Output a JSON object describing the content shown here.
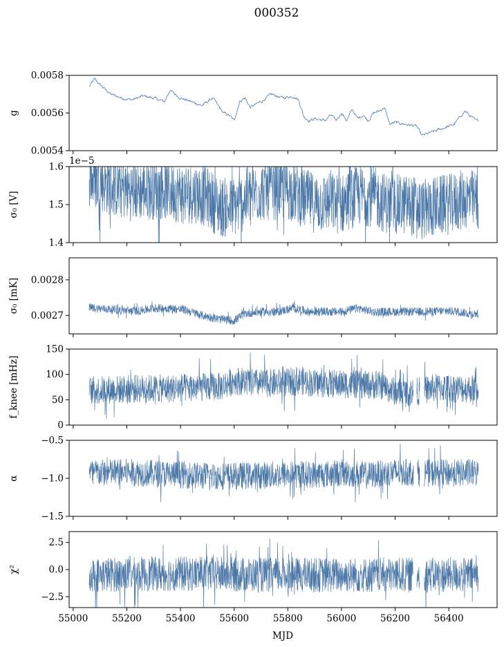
{
  "figure": {
    "title": "000352"
  },
  "colors": {
    "series": "#4c78a8",
    "axis": "#000000",
    "background": "#ffffff"
  },
  "chart_data": [
    {
      "type": "line",
      "id": "g",
      "ylabel": "g",
      "ylim": [
        0.0054,
        0.0058
      ],
      "yticks": [
        0.0054,
        0.0056,
        0.0058
      ],
      "yticklabels": [
        "0.0054",
        "0.0056",
        "0.0058"
      ],
      "offset_text": "",
      "x_range": [
        55060,
        56510
      ],
      "style": "thin",
      "series": [
        {
          "x": [
            55060,
            55080,
            55100,
            55140,
            55180,
            55220,
            55260,
            55300,
            55340,
            55360,
            55400,
            55440,
            55480,
            55520,
            55560,
            55580,
            55600,
            55620,
            55640,
            55660,
            55700,
            55740,
            55780,
            55820,
            55840,
            55860,
            55880,
            55900,
            55940,
            55960,
            55980,
            56000,
            56020,
            56040,
            56060,
            56080,
            56100,
            56120,
            56140,
            56160,
            56180,
            56200,
            56240,
            56280,
            56300,
            56340,
            56380,
            56420,
            56460,
            56500
          ],
          "y": [
            0.00574,
            0.00578,
            0.00575,
            0.0057,
            0.00568,
            0.00567,
            0.00569,
            0.00568,
            0.00566,
            0.00572,
            0.00568,
            0.00566,
            0.00564,
            0.00568,
            0.0056,
            0.00559,
            0.00556,
            0.00566,
            0.00568,
            0.00563,
            0.00566,
            0.0057,
            0.00568,
            0.00569,
            0.00567,
            0.00558,
            0.00556,
            0.00557,
            0.00556,
            0.00559,
            0.00556,
            0.0056,
            0.00556,
            0.00562,
            0.00557,
            0.00559,
            0.00556,
            0.0056,
            0.00561,
            0.00563,
            0.00554,
            0.00555,
            0.00554,
            0.00553,
            0.00548,
            0.0055,
            0.00552,
            0.00554,
            0.00561,
            0.00556
          ]
        }
      ]
    },
    {
      "type": "line",
      "id": "sigma0_v",
      "ylabel": "σ₀ [V]",
      "ylim": [
        1.4e-05,
        1.6e-05
      ],
      "yticks": [
        1.4e-05,
        1.5e-05,
        1.6e-05
      ],
      "yticklabels": [
        "1.4",
        "1.5",
        "1.6"
      ],
      "offset_text": "1e−5",
      "x_range": [
        55060,
        56510
      ],
      "style": "band",
      "series": [
        {
          "x": [
            55060,
            55100,
            55160,
            55220,
            55280,
            55340,
            55400,
            55460,
            55500,
            55540,
            55580,
            55620,
            55660,
            55700,
            55760,
            55820,
            55860,
            55900,
            55960,
            56000,
            56040,
            56080,
            56120,
            56160,
            56200,
            56240,
            56280,
            56300,
            56340,
            56400,
            56460,
            56510
          ],
          "y": [
            1.57e-05,
            1.56e-05,
            1.545e-05,
            1.535e-05,
            1.54e-05,
            1.54e-05,
            1.53e-05,
            1.53e-05,
            1.52e-05,
            1.495e-05,
            1.49e-05,
            1.5e-05,
            1.525e-05,
            1.535e-05,
            1.54e-05,
            1.535e-05,
            1.515e-05,
            1.505e-05,
            1.505e-05,
            1.5e-05,
            1.52e-05,
            1.525e-05,
            1.52e-05,
            1.505e-05,
            1.5e-05,
            1.5e-05,
            1.495e-05,
            1.485e-05,
            1.495e-05,
            1.5e-05,
            1.515e-05,
            1.51e-05
          ],
          "spread": 8e-07
        }
      ]
    },
    {
      "type": "line",
      "id": "sigma0_mk",
      "ylabel": "σ₀ [mK]",
      "ylim": [
        0.002648,
        0.002862
      ],
      "yticks": [
        0.0027,
        0.0028
      ],
      "yticklabels": [
        "0.0027",
        "0.0028"
      ],
      "offset_text": "",
      "x_range": [
        55060,
        56510
      ],
      "style": "band",
      "series": [
        {
          "x": [
            55060,
            55120,
            55180,
            55240,
            55300,
            55360,
            55420,
            55480,
            55540,
            55600,
            55640,
            55700,
            55760,
            55820,
            55880,
            55940,
            56000,
            56060,
            56120,
            56180,
            56240,
            56300,
            56360,
            56420,
            56480,
            56510
          ],
          "y": [
            0.002722,
            0.002718,
            0.002715,
            0.002712,
            0.00272,
            0.00272,
            0.002715,
            0.0027,
            0.00269,
            0.002685,
            0.002705,
            0.00271,
            0.00271,
            0.00272,
            0.00271,
            0.00271,
            0.00271,
            0.00272,
            0.00271,
            0.00271,
            0.00271,
            0.00271,
            0.002712,
            0.002712,
            0.002705,
            0.002705
          ],
          "spread": 1.2e-05
        }
      ]
    },
    {
      "type": "line",
      "id": "fknee",
      "ylabel": "f_knee [mHz]",
      "ylim": [
        0,
        150
      ],
      "yticks": [
        0,
        50,
        100,
        150
      ],
      "yticklabels": [
        "0",
        "50",
        "100",
        "150"
      ],
      "offset_text": "",
      "x_range": [
        55060,
        56510
      ],
      "style": "band",
      "gaps": [
        [
          56268,
          56280
        ],
        [
          56292,
          56308
        ]
      ],
      "series": [
        {
          "x": [
            55060,
            55150,
            55250,
            55350,
            55450,
            55550,
            55600,
            55650,
            55700,
            55800,
            55850,
            55900,
            55950,
            56050,
            56150,
            56200,
            56250,
            56300,
            56350,
            56450,
            56510
          ],
          "y": [
            68,
            70,
            72,
            72,
            74,
            76,
            88,
            85,
            82,
            84,
            88,
            82,
            82,
            80,
            78,
            66,
            64,
            68,
            74,
            72,
            72
          ],
          "spread": 28
        }
      ]
    },
    {
      "type": "line",
      "id": "alpha",
      "ylabel": "α",
      "ylim": [
        -1.5,
        -0.5
      ],
      "yticks": [
        -1.5,
        -1.0,
        -0.5
      ],
      "yticklabels": [
        "−1.5",
        "−1.0",
        "−0.5"
      ],
      "offset_text": "",
      "x_range": [
        55060,
        56510
      ],
      "style": "band",
      "gaps": [
        [
          56270,
          56282
        ],
        [
          56292,
          56308
        ]
      ],
      "series": [
        {
          "x": [
            55060,
            55200,
            55400,
            55500,
            55600,
            55800,
            55900,
            56000,
            56100,
            56200,
            56300,
            56400,
            56510
          ],
          "y": [
            -0.93,
            -0.92,
            -0.95,
            -0.97,
            -0.97,
            -0.95,
            -0.95,
            -0.93,
            -0.96,
            -0.92,
            -0.93,
            -0.93,
            -0.93
          ],
          "spread": 0.18
        }
      ]
    },
    {
      "type": "line",
      "id": "chi2",
      "ylabel": "χ²",
      "ylim": [
        -3.5,
        3.5
      ],
      "yticks": [
        -2.5,
        0.0,
        2.5
      ],
      "yticklabels": [
        "−2.5",
        "0.0",
        "2.5"
      ],
      "offset_text": "",
      "x_range": [
        55060,
        56510
      ],
      "style": "band",
      "gaps": [
        [
          56268,
          56280
        ],
        [
          56292,
          56308
        ]
      ],
      "series": [
        {
          "x": [
            55060,
            55300,
            55500,
            55700,
            55900,
            56100,
            56300,
            56510
          ],
          "y": [
            -0.5,
            -0.4,
            -0.4,
            -0.5,
            -0.5,
            -0.5,
            -0.5,
            -0.5
          ],
          "spread": 1.6
        }
      ]
    }
  ],
  "x_axis": {
    "label": "MJD",
    "xlim": [
      54985,
      56580
    ],
    "ticks": [
      55000,
      55200,
      55400,
      55600,
      55800,
      56000,
      56200,
      56400
    ],
    "ticklabels": [
      "55000",
      "55200",
      "55400",
      "55600",
      "55800",
      "56000",
      "56200",
      "56400"
    ]
  }
}
